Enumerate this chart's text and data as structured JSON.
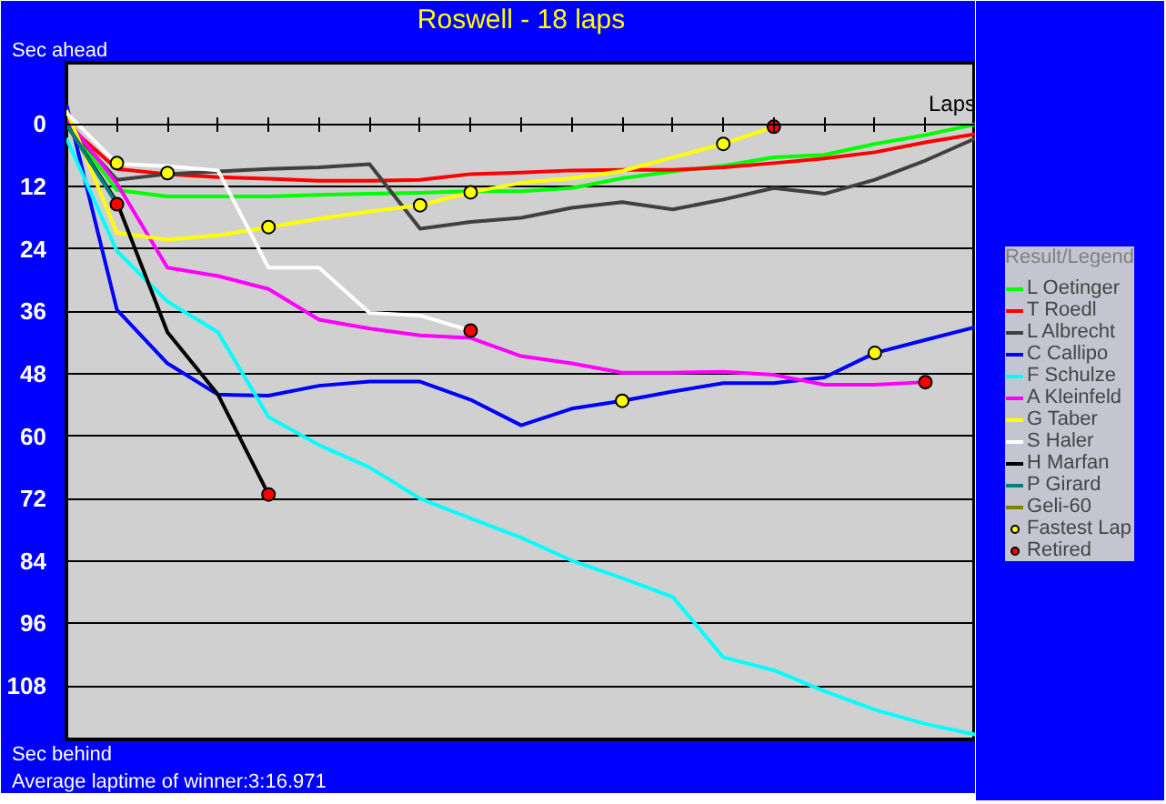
{
  "chart_data": {
    "type": "line",
    "title": "Roswell - 18 laps",
    "xlabel": "Laps",
    "annotations": [
      "Sec ahead",
      "Sec behind",
      "Average laptime of winner:3:16.971"
    ],
    "legend_title": "Result/Legend",
    "categories": [
      null,
      null,
      null,
      null,
      null,
      null,
      null,
      null,
      null,
      null,
      null,
      null,
      null,
      null,
      null,
      null,
      null,
      null,
      null
    ],
    "ylim": [
      118.3,
      -11.8
    ],
    "yticks": [
      0,
      12,
      24,
      36,
      48,
      60,
      72,
      84,
      96,
      108
    ],
    "tick_labels": "y",
    "grid": "y",
    "legend": "right",
    "line_style": "solid",
    "series": [
      {
        "name": "L Oetinger",
        "color": "#00ff00",
        "values": [
          0,
          12.7,
          13.9,
          13.9,
          13.9,
          13.6,
          13.4,
          13.2,
          12.9,
          12.9,
          12.3,
          10.4,
          9.1,
          8,
          6.4,
          5.9,
          3.8,
          2.1,
          0
        ]
      },
      {
        "name": "T Roedl",
        "color": "#ff0000",
        "values": [
          0,
          8.6,
          9.6,
          10.2,
          10.5,
          10.9,
          10.9,
          10.7,
          9.6,
          9.3,
          8.9,
          8.8,
          8.8,
          8.3,
          7.5,
          6.6,
          5.4,
          3.5,
          1.9
        ]
      },
      {
        "name": "L Albrecht",
        "color": "#404040",
        "values": [
          0,
          10.7,
          9.6,
          9.1,
          8.6,
          8.3,
          7.7,
          20.1,
          18.8,
          18,
          16.1,
          15,
          16.4,
          14.5,
          12.3,
          13.4,
          10.7,
          7,
          2.7
        ]
      },
      {
        "name": "C Callipo",
        "color": "#0000ff",
        "values": [
          -3.8,
          35.7,
          46,
          52,
          52.2,
          50.3,
          49.5,
          49.5,
          53,
          57.9,
          54.7,
          53.2,
          51.4,
          49.8,
          49.8,
          48.7,
          44,
          41.5,
          39
        ]
      },
      {
        "name": "F Schulze",
        "color": "#00ffff",
        "values": [
          2.7,
          24.4,
          34.1,
          40,
          56.3,
          61.7,
          66,
          72,
          75.8,
          79.5,
          83.9,
          87.3,
          90.9,
          102.5,
          105,
          109,
          112.6,
          115.3,
          117.4
        ]
      },
      {
        "name": "A Kleinfeld",
        "color": "#ff00ff",
        "values": [
          -1,
          11.4,
          27.6,
          29.2,
          31.7,
          37.6,
          39.3,
          40.6,
          41.1,
          44.6,
          46,
          47.8,
          47.8,
          47.6,
          48.2,
          50.1,
          50.1,
          49.6,
          null
        ]
      },
      {
        "name": "G Taber",
        "color": "#ffff00",
        "values": [
          -2.7,
          20.9,
          22.2,
          21.4,
          19.8,
          18.2,
          16.8,
          15.6,
          13.1,
          11.3,
          10.4,
          9,
          6.4,
          3.8,
          0.5,
          null,
          null,
          null,
          null
        ]
      },
      {
        "name": "S Haler",
        "color": "#ffffff",
        "values": [
          -2.2,
          7.6,
          8.1,
          8.9,
          27.6,
          27.6,
          36.3,
          36.8,
          39.7,
          null,
          null,
          null,
          null,
          null,
          null,
          null,
          null,
          null,
          null
        ]
      },
      {
        "name": "H Marfan",
        "color": "#000000",
        "values": [
          0,
          15,
          40,
          52,
          71.2,
          null,
          null,
          null,
          null,
          null,
          null,
          null,
          null,
          null,
          null,
          null,
          null,
          null,
          null
        ]
      },
      {
        "name": "P Girard",
        "color": "#008080",
        "values": [
          0,
          15.4,
          null,
          null,
          null,
          null,
          null,
          null,
          null,
          null,
          null,
          null,
          null,
          null,
          null,
          null,
          null,
          null,
          null
        ]
      },
      {
        "name": "Geli-60",
        "color": "#808000",
        "values": [
          null,
          null,
          null,
          null,
          null,
          null,
          null,
          null,
          null,
          null,
          null,
          null,
          null,
          null,
          null,
          null,
          null,
          null,
          null
        ]
      },
      {
        "name": "Fastest Lap",
        "type": "scatter",
        "marker": "circle",
        "color": "#ffff00",
        "values": [
          null,
          7.5,
          9.4,
          null,
          19.8,
          null,
          null,
          15.6,
          13.1,
          null,
          null,
          53.2,
          null,
          3.8,
          null,
          null,
          44,
          null,
          null
        ]
      },
      {
        "name": "Retired",
        "type": "scatter",
        "marker": "circle",
        "color": "#ff0000",
        "values": [
          null,
          15.4,
          null,
          null,
          71.2,
          null,
          null,
          null,
          39.7,
          null,
          null,
          null,
          null,
          null,
          0.5,
          null,
          null,
          49.6,
          null
        ]
      }
    ]
  }
}
